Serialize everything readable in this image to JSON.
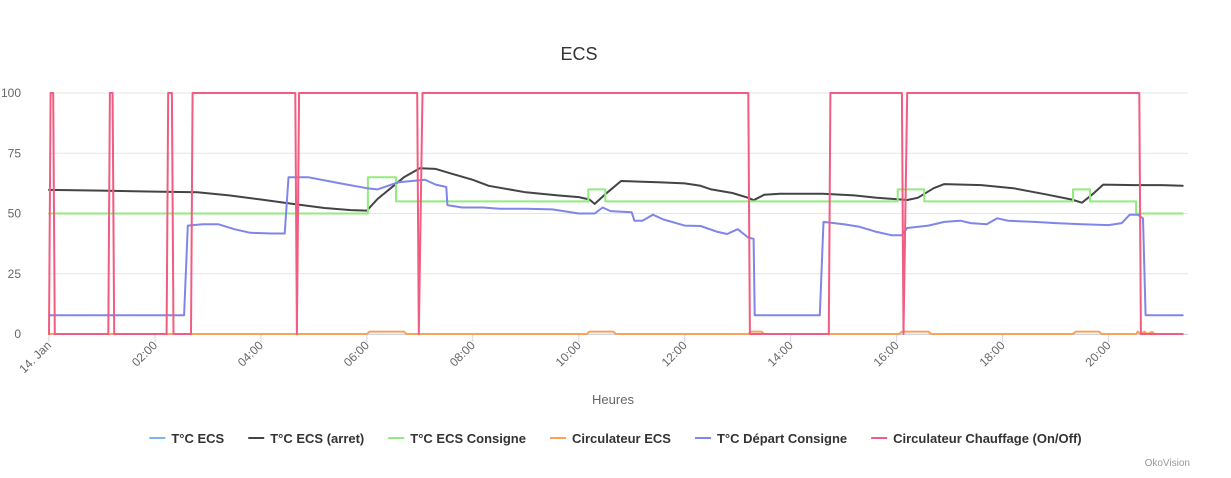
{
  "chart_data": {
    "type": "line",
    "title": "ECS",
    "xlabel": "Heures",
    "ylabel": "",
    "credits": "OkoVision",
    "x_unit": "hours",
    "xlim": [
      0,
      21.5
    ],
    "ylim": [
      0,
      100
    ],
    "y_ticks": [
      0,
      25,
      50,
      75,
      100
    ],
    "x_ticks": [
      {
        "x": 0,
        "label": "14. Jan"
      },
      {
        "x": 2,
        "label": "02:00"
      },
      {
        "x": 4,
        "label": "04:00"
      },
      {
        "x": 6,
        "label": "06:00"
      },
      {
        "x": 8,
        "label": "08:00"
      },
      {
        "x": 10,
        "label": "10:00"
      },
      {
        "x": 12,
        "label": "12:00"
      },
      {
        "x": 14,
        "label": "14:00"
      },
      {
        "x": 16,
        "label": "16:00"
      },
      {
        "x": 18,
        "label": "18:00"
      },
      {
        "x": 20,
        "label": "20:00"
      }
    ],
    "legend_position": "bottom",
    "series": [
      {
        "name": "T°C ECS",
        "color": "#7cb5ec",
        "points": []
      },
      {
        "name": "T°C ECS (arret)",
        "color": "#434348",
        "points": [
          [
            0,
            59.8
          ],
          [
            1,
            59.5
          ],
          [
            2,
            59.1
          ],
          [
            2.8,
            58.8
          ],
          [
            3.4,
            57.5
          ],
          [
            4,
            55.8
          ],
          [
            4.6,
            54
          ],
          [
            5.2,
            52.3
          ],
          [
            5.7,
            51.4
          ],
          [
            6,
            51.2
          ],
          [
            6.2,
            56
          ],
          [
            6.45,
            60.5
          ],
          [
            6.7,
            65
          ],
          [
            7,
            68.8
          ],
          [
            7.3,
            68.5
          ],
          [
            7.6,
            66.5
          ],
          [
            8,
            64
          ],
          [
            8.3,
            61.5
          ],
          [
            9,
            58.8
          ],
          [
            9.6,
            57.5
          ],
          [
            10,
            56.8
          ],
          [
            10.2,
            55.8
          ],
          [
            10.3,
            54
          ],
          [
            10.5,
            58
          ],
          [
            10.8,
            63.5
          ],
          [
            11.5,
            63
          ],
          [
            12,
            62.5
          ],
          [
            12.3,
            61.5
          ],
          [
            12.5,
            60
          ],
          [
            12.9,
            58.5
          ],
          [
            13.2,
            56.5
          ],
          [
            13.3,
            55.5
          ],
          [
            13.5,
            57.8
          ],
          [
            13.8,
            58.2
          ],
          [
            14.6,
            58.2
          ],
          [
            15.2,
            57.5
          ],
          [
            15.6,
            56.6
          ],
          [
            16.2,
            55.6
          ],
          [
            16.4,
            56.5
          ],
          [
            16.7,
            60.5
          ],
          [
            16.9,
            62.2
          ],
          [
            17.6,
            61.8
          ],
          [
            18.2,
            60.5
          ],
          [
            18.8,
            58
          ],
          [
            19.3,
            55.8
          ],
          [
            19.5,
            54.5
          ],
          [
            19.7,
            58
          ],
          [
            19.9,
            62
          ],
          [
            20.5,
            61.8
          ],
          [
            21,
            61.8
          ],
          [
            21.4,
            61.5
          ]
        ]
      },
      {
        "name": "T°C ECS Consigne",
        "color": "#90ed7d",
        "points": [
          [
            0,
            50
          ],
          [
            6.02,
            50
          ],
          [
            6.02,
            65
          ],
          [
            6.55,
            65
          ],
          [
            6.55,
            55
          ],
          [
            10.18,
            55
          ],
          [
            10.18,
            60
          ],
          [
            10.5,
            60
          ],
          [
            10.5,
            55
          ],
          [
            16.02,
            55
          ],
          [
            16.02,
            60
          ],
          [
            16.52,
            60
          ],
          [
            16.52,
            55
          ],
          [
            19.33,
            55
          ],
          [
            19.33,
            60
          ],
          [
            19.65,
            60
          ],
          [
            19.65,
            55
          ],
          [
            20.52,
            55
          ],
          [
            20.52,
            50
          ],
          [
            21.4,
            50
          ]
        ]
      },
      {
        "name": "Circulateur ECS",
        "color": "#f7a35c",
        "points": [
          [
            0,
            0
          ],
          [
            6,
            0
          ],
          [
            6.05,
            1
          ],
          [
            6.7,
            1
          ],
          [
            6.75,
            0
          ],
          [
            10.15,
            0
          ],
          [
            10.2,
            1
          ],
          [
            10.65,
            1
          ],
          [
            10.7,
            0
          ],
          [
            13.2,
            0
          ],
          [
            13.25,
            1
          ],
          [
            13.45,
            1
          ],
          [
            13.5,
            0
          ],
          [
            16.05,
            0
          ],
          [
            16.1,
            1
          ],
          [
            16.6,
            1
          ],
          [
            16.65,
            0
          ],
          [
            19.33,
            0
          ],
          [
            19.38,
            1
          ],
          [
            19.82,
            1
          ],
          [
            19.87,
            0
          ],
          [
            20.52,
            0
          ],
          [
            20.55,
            1
          ],
          [
            20.6,
            0
          ],
          [
            20.68,
            1
          ],
          [
            20.73,
            0
          ],
          [
            20.82,
            0.9
          ],
          [
            20.87,
            0
          ],
          [
            21.4,
            0
          ]
        ]
      },
      {
        "name": "T°C Départ Consigne",
        "color": "#8085e9",
        "points": [
          [
            0,
            7.8
          ],
          [
            2.55,
            7.8
          ],
          [
            2.62,
            45
          ],
          [
            2.9,
            45.5
          ],
          [
            3.2,
            45.5
          ],
          [
            3.5,
            43.5
          ],
          [
            3.8,
            42
          ],
          [
            4.2,
            41.7
          ],
          [
            4.45,
            41.7
          ],
          [
            4.52,
            65
          ],
          [
            4.9,
            65
          ],
          [
            5.5,
            62.5
          ],
          [
            6,
            60.5
          ],
          [
            6.2,
            60
          ],
          [
            6.6,
            63
          ],
          [
            7.1,
            64
          ],
          [
            7.3,
            62
          ],
          [
            7.5,
            61
          ],
          [
            7.52,
            53.5
          ],
          [
            7.8,
            52.5
          ],
          [
            8.2,
            52.5
          ],
          [
            8.5,
            52
          ],
          [
            9,
            52
          ],
          [
            9.5,
            51.7
          ],
          [
            10,
            50
          ],
          [
            10.3,
            50
          ],
          [
            10.45,
            52.5
          ],
          [
            10.6,
            51
          ],
          [
            11,
            50.5
          ],
          [
            11.05,
            47
          ],
          [
            11.2,
            47
          ],
          [
            11.4,
            49.5
          ],
          [
            11.6,
            47.5
          ],
          [
            12,
            45
          ],
          [
            12.3,
            44.8
          ],
          [
            12.6,
            42.5
          ],
          [
            12.8,
            41.5
          ],
          [
            13,
            43.5
          ],
          [
            13.2,
            40
          ],
          [
            13.3,
            39.5
          ],
          [
            13.32,
            7.8
          ],
          [
            14.55,
            7.8
          ],
          [
            14.62,
            46.5
          ],
          [
            15,
            45.5
          ],
          [
            15.3,
            44.5
          ],
          [
            15.6,
            42.5
          ],
          [
            15.9,
            41
          ],
          [
            16.1,
            41
          ],
          [
            16.2,
            44
          ],
          [
            16.6,
            45
          ],
          [
            16.9,
            46.5
          ],
          [
            17.2,
            47
          ],
          [
            17.4,
            46
          ],
          [
            17.7,
            45.5
          ],
          [
            17.9,
            48
          ],
          [
            18.1,
            47
          ],
          [
            18.6,
            46.5
          ],
          [
            19,
            46
          ],
          [
            19.5,
            45.5
          ],
          [
            20,
            45.2
          ],
          [
            20.25,
            46
          ],
          [
            20.4,
            49.5
          ],
          [
            20.55,
            49.5
          ],
          [
            20.65,
            48
          ],
          [
            20.7,
            7.8
          ],
          [
            21.4,
            7.8
          ]
        ]
      },
      {
        "name": "Circulateur Chauffage (On/Off)",
        "color": "#f15c80",
        "points": [
          [
            0,
            0
          ],
          [
            0.03,
            100
          ],
          [
            0.08,
            100
          ],
          [
            0.11,
            0
          ],
          [
            1.12,
            0
          ],
          [
            1.15,
            100
          ],
          [
            1.2,
            100
          ],
          [
            1.23,
            0
          ],
          [
            2.22,
            0
          ],
          [
            2.25,
            100
          ],
          [
            2.32,
            100
          ],
          [
            2.35,
            0
          ],
          [
            2.68,
            0
          ],
          [
            2.71,
            100
          ],
          [
            4.65,
            100
          ],
          [
            4.68,
            0
          ],
          [
            4.72,
            100
          ],
          [
            6.95,
            100
          ],
          [
            6.98,
            0
          ],
          [
            7.05,
            100
          ],
          [
            13.2,
            100
          ],
          [
            13.23,
            0
          ],
          [
            14.72,
            0
          ],
          [
            14.75,
            100
          ],
          [
            16.1,
            100
          ],
          [
            16.13,
            0
          ],
          [
            16.2,
            100
          ],
          [
            20.58,
            100
          ],
          [
            20.61,
            0
          ],
          [
            21.4,
            0
          ]
        ]
      }
    ]
  }
}
